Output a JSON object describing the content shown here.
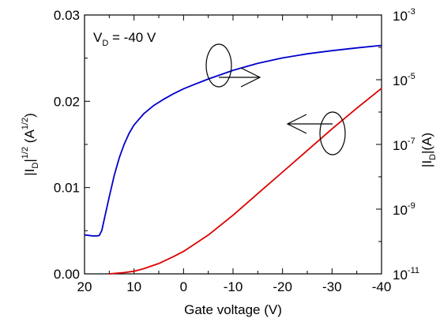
{
  "chart_data": {
    "type": "line",
    "xlabel": "Gate voltage (V)",
    "x_ticks": [
      20,
      10,
      0,
      -10,
      -20,
      -30,
      -40
    ],
    "x_tick_labels": [
      "20",
      "10",
      "0",
      "-10",
      "-20",
      "-30",
      "-40"
    ],
    "xlim": [
      20,
      -40
    ],
    "y_left": {
      "label_main": "|I",
      "label_sub": "D",
      "label_sup": "1/2",
      "label_unit_open": " (A",
      "label_unit_sup": "1/2",
      "label_unit_close": ")",
      "ylim": [
        0,
        0.03
      ],
      "ticks": [
        0,
        0.01,
        0.02,
        0.03
      ],
      "tick_labels": [
        "0.00",
        "0.01",
        "0.02",
        "0.03"
      ]
    },
    "y_right": {
      "label_main": "|I",
      "label_sub": "D",
      "label_end": "|(A)",
      "scale": "log",
      "ylim": [
        1e-11,
        0.001
      ],
      "ticks": [
        1e-11,
        1e-09,
        1e-07,
        1e-05,
        0.001
      ],
      "tick_bases": [
        "10",
        "10",
        "10",
        "10",
        "10"
      ],
      "tick_exponents": [
        "-11",
        "-9",
        "-7",
        "-5",
        "-3"
      ]
    },
    "annotation": {
      "main": "V",
      "sub": "D",
      "rest": " = -40 V"
    },
    "series": [
      {
        "axis": "right",
        "color": "#0000cc",
        "x": [
          20,
          18.5,
          17.5,
          17,
          16.5,
          16,
          15,
          14,
          13,
          12,
          11,
          10,
          8,
          6,
          4,
          2,
          0,
          -2,
          -5,
          -10,
          -15,
          -20,
          -25,
          -30,
          -35,
          -40
        ],
        "y": [
          1.6e-10,
          1.5e-10,
          1.48e-10,
          1.55e-10,
          2.2e-10,
          5e-10,
          2.4e-09,
          1.1e-08,
          3.8e-08,
          1e-07,
          2.2e-07,
          4e-07,
          9e-07,
          1.6e-06,
          2.5e-06,
          3.7e-06,
          5.2e-06,
          7e-06,
          1.05e-05,
          1.95e-05,
          3.2e-05,
          4.7e-05,
          6.3e-05,
          7.9e-05,
          9.6e-05,
          0.000115
        ]
      },
      {
        "axis": "left",
        "color": "#dd0000",
        "x": [
          15,
          12,
          10,
          8,
          5,
          2,
          0,
          -5,
          -10,
          -15,
          -20,
          -25,
          -30,
          -35,
          -40
        ],
        "y": [
          0.0,
          0.00015,
          0.0003,
          0.0006,
          0.0012,
          0.002,
          0.0026,
          0.0045,
          0.0068,
          0.0093,
          0.0118,
          0.0143,
          0.0168,
          0.0192,
          0.0215
        ]
      }
    ],
    "arrows": [
      {
        "points_to": "right"
      },
      {
        "points_to": "left"
      }
    ]
  }
}
